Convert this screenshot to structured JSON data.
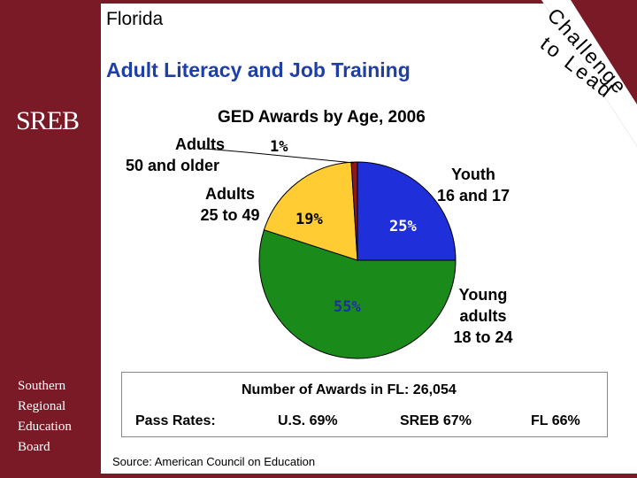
{
  "sidebar": {
    "logo": "SREB",
    "org_lines": [
      "Southern",
      "Regional",
      "Education",
      "Board"
    ]
  },
  "header": {
    "state": "Florida",
    "title": "Adult Literacy and Job Training",
    "tagline_line1": "Challenge",
    "tagline_line2": "to Lead"
  },
  "colors": {
    "brand": "#7a1a26",
    "title": "#1f3fa6",
    "slice_youth": "#1f2fd9",
    "slice_young_adults": "#1a8a1a",
    "slice_adults_25_49": "#ffcc33",
    "slice_adults_50": "#8b1a1a"
  },
  "chart_data": {
    "type": "pie",
    "title": "GED Awards by Age, 2006",
    "slices": [
      {
        "key": "youth",
        "label_lines": [
          "Youth",
          "16 and 17"
        ],
        "value": 25,
        "value_label": "25%"
      },
      {
        "key": "young_adults",
        "label_lines": [
          "Young",
          "adults",
          "18 to 24"
        ],
        "value": 55,
        "value_label": "55%"
      },
      {
        "key": "adults_25_49",
        "label_lines": [
          "Adults",
          "25 to 49"
        ],
        "value": 19,
        "value_label": "19%"
      },
      {
        "key": "adults_50",
        "label_lines": [
          "Adults",
          "50 and older"
        ],
        "value": 1,
        "value_label": "1%"
      }
    ],
    "total_label": "Number of Awards in FL:",
    "total_value": "26,054"
  },
  "pass_rates": {
    "label": "Pass Rates:",
    "us": "U.S. 69%",
    "sreb": "SREB 67%",
    "fl": "FL 66%"
  },
  "source": "Source: American Council on Education"
}
